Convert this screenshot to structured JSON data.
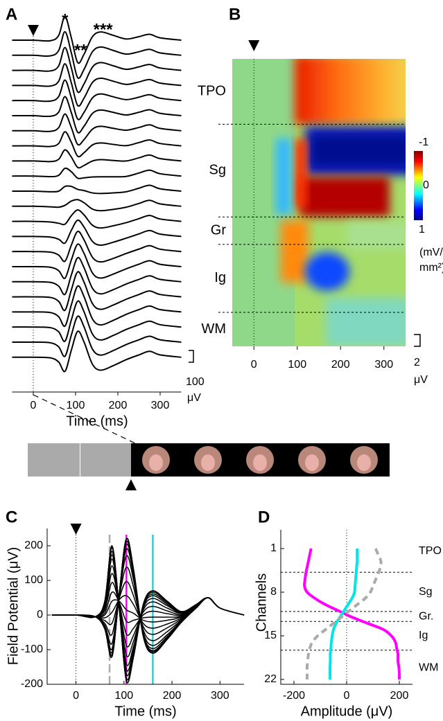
{
  "chart_data": [
    {
      "type": "stacked-line",
      "panel": "A",
      "xlabel": "Time (ms)",
      "xlim": [
        -50,
        350
      ],
      "xticks": [
        0,
        100,
        200,
        300
      ],
      "color": "#000000",
      "x": [
        -50,
        0,
        40,
        60,
        75,
        90,
        105,
        120,
        140,
        160,
        190,
        220,
        250,
        275,
        300,
        350
      ],
      "series": [
        {
          "values": [
            0,
            0,
            -5,
            40,
            200,
            20,
            -190,
            -120,
            30,
            70,
            40,
            10,
            30,
            50,
            20,
            0
          ]
        },
        {
          "values": [
            0,
            0,
            -5,
            40,
            200,
            20,
            -190,
            -120,
            30,
            70,
            40,
            10,
            30,
            50,
            20,
            0
          ]
        },
        {
          "values": [
            0,
            0,
            -5,
            38,
            194,
            21,
            -182,
            -115,
            28,
            66,
            38,
            9,
            30,
            50,
            20,
            0
          ]
        },
        {
          "values": [
            0,
            0,
            -5,
            36,
            184,
            22,
            -170,
            -108,
            26,
            61,
            35,
            9,
            30,
            50,
            20,
            0
          ]
        },
        {
          "values": [
            0,
            0,
            -5,
            34,
            174,
            23,
            -157,
            -100,
            23,
            56,
            31,
            8,
            29,
            50,
            20,
            0
          ]
        },
        {
          "values": [
            0,
            0,
            -5,
            30,
            162,
            25,
            -141,
            -90,
            19,
            48,
            27,
            6,
            29,
            50,
            20,
            0
          ]
        },
        {
          "values": [
            0,
            0,
            -5,
            26,
            142,
            27,
            -116,
            -75,
            14,
            38,
            20,
            5,
            28,
            50,
            20,
            0
          ]
        },
        {
          "values": [
            0,
            0,
            -5,
            20,
            120,
            30,
            -88,
            -58,
            8,
            25,
            12,
            2,
            28,
            50,
            20,
            0
          ]
        },
        {
          "values": [
            0,
            0,
            -5,
            14,
            94,
            33,
            -55,
            -38,
            0,
            11,
            4,
            0,
            27,
            50,
            20,
            0
          ]
        },
        {
          "values": [
            0,
            0,
            -5,
            6,
            66,
            37,
            -18,
            -15,
            -8,
            -6,
            -6,
            -3,
            26,
            50,
            20,
            0
          ]
        },
        {
          "values": [
            0,
            0,
            -5,
            0,
            40,
            40,
            15,
            5,
            -15,
            -20,
            -15,
            -5,
            25,
            50,
            20,
            0
          ]
        },
        {
          "values": [
            0,
            0,
            -5,
            -8,
            8,
            44,
            56,
            30,
            -24,
            -38,
            -26,
            -8,
            24,
            50,
            20,
            0
          ]
        },
        {
          "values": [
            0,
            0,
            -5,
            -16,
            -24,
            48,
            97,
            55,
            -33,
            -56,
            -37,
            -11,
            23,
            50,
            20,
            0
          ]
        },
        {
          "values": [
            0,
            0,
            -5,
            -24,
            -56,
            52,
            138,
            80,
            -42,
            -74,
            -48,
            -14,
            22,
            50,
            20,
            0
          ]
        },
        {
          "values": [
            0,
            0,
            -5,
            -30,
            -82,
            55,
            171,
            100,
            -49,
            -88,
            -57,
            -16,
            21,
            50,
            20,
            0
          ]
        },
        {
          "values": [
            0,
            0,
            -5,
            -34,
            -98,
            57,
            191,
            113,
            -54,
            -97,
            -62,
            -18,
            21,
            50,
            20,
            0
          ]
        },
        {
          "values": [
            0,
            0,
            -5,
            -37,
            -107,
            58,
            204,
            120,
            -56,
            -103,
            -66,
            -19,
            20,
            50,
            20,
            0
          ]
        },
        {
          "values": [
            0,
            0,
            -5,
            -38,
            -114,
            59,
            212,
            125,
            -58,
            -106,
            -68,
            -20,
            20,
            50,
            20,
            0
          ]
        },
        {
          "values": [
            0,
            0,
            -5,
            -40,
            -120,
            60,
            220,
            130,
            -60,
            -110,
            -70,
            -20,
            20,
            50,
            20,
            0
          ]
        },
        {
          "values": [
            0,
            0,
            -5,
            -40,
            -120,
            60,
            220,
            130,
            -60,
            -110,
            -70,
            -20,
            20,
            50,
            20,
            0
          ]
        },
        {
          "values": [
            0,
            0,
            -5,
            -40,
            -120,
            60,
            220,
            130,
            -60,
            -110,
            -70,
            -20,
            20,
            50,
            20,
            0
          ]
        },
        {
          "values": [
            0,
            0,
            -5,
            -40,
            -120,
            60,
            220,
            130,
            -60,
            -110,
            -70,
            -20,
            20,
            50,
            20,
            0
          ]
        }
      ],
      "annotations": [
        {
          "text": "*",
          "x": 75,
          "color": "#999999"
        },
        {
          "text": "**",
          "x": 112,
          "color": "#ff00ff"
        },
        {
          "text": "***",
          "x": 165,
          "color": "#00d4e0"
        }
      ],
      "scale_bar": 100,
      "scale_unit": "μV"
    },
    {
      "type": "heatmap",
      "panel": "B",
      "xlim": [
        -50,
        350
      ],
      "xticks": [
        0,
        100,
        200,
        300
      ],
      "ylim": [
        0.5,
        22.5
      ],
      "layers": [
        "TPO",
        "Sg",
        "Gr",
        "Ig",
        "WM"
      ],
      "boundaries": [
        5.5,
        12.6,
        14.7,
        19.9
      ],
      "colorbar": {
        "lim": [
          -1,
          1
        ],
        "ticks": [
          -1,
          0,
          1
        ],
        "unit": [
          "(mV/",
          "mm²)"
        ]
      },
      "scale_bar": 2,
      "scale_unit": "μV"
    },
    {
      "type": "line",
      "panel": "C",
      "ylabel": "Field Potential (μV)",
      "xlabel": "Time (ms)",
      "xlim": [
        -60,
        350
      ],
      "xticks": [
        0,
        100,
        200,
        300
      ],
      "ylim": [
        -200,
        250
      ],
      "yticks": [
        -200,
        -100,
        0,
        100,
        200
      ],
      "markers": [
        {
          "x": 70,
          "color": "#aaaaaa",
          "dashed": true
        },
        {
          "x": 105,
          "color": "#ff00ff"
        },
        {
          "x": 160,
          "color": "#00e5e5"
        }
      ]
    },
    {
      "type": "profile",
      "panel": "D",
      "ylabel": "Channels",
      "xlabel": "Amplitude (μV)",
      "xlim": [
        -250,
        250
      ],
      "xticks": [
        -200,
        0,
        200
      ],
      "ylim": [
        -2,
        23
      ],
      "yticks": [
        1,
        8,
        15,
        22
      ],
      "channels": [
        1,
        2,
        3,
        4,
        5,
        6,
        7,
        8,
        9,
        10,
        11,
        12,
        13,
        14,
        15,
        16,
        17,
        18,
        19,
        20,
        21,
        22
      ],
      "series": [
        {
          "color": "#ff00ff",
          "values": [
            -135,
            -140,
            -145,
            -150,
            -155,
            -158,
            -160,
            -150,
            -120,
            -80,
            -30,
            20,
            80,
            140,
            170,
            185,
            190,
            195,
            195,
            198,
            200,
            200
          ]
        },
        {
          "color": "#00e5e5",
          "values": [
            40,
            40,
            40,
            38,
            36,
            34,
            32,
            30,
            20,
            5,
            -10,
            -25,
            -40,
            -50,
            -55,
            -58,
            -60,
            -62,
            -62,
            -63,
            -63,
            -63
          ]
        },
        {
          "color": "#aaaaaa",
          "dashed": true,
          "values": [
            110,
            120,
            130,
            128,
            120,
            110,
            100,
            90,
            70,
            40,
            10,
            -20,
            -50,
            -80,
            -110,
            -130,
            -140,
            -145,
            -148,
            -150,
            -150,
            -150
          ]
        }
      ],
      "layers": [
        "TPO",
        "Sg",
        "Gr.",
        "Ig",
        "WM"
      ],
      "boundaries": [
        4.8,
        11.1,
        12.7,
        17.3
      ]
    }
  ]
}
